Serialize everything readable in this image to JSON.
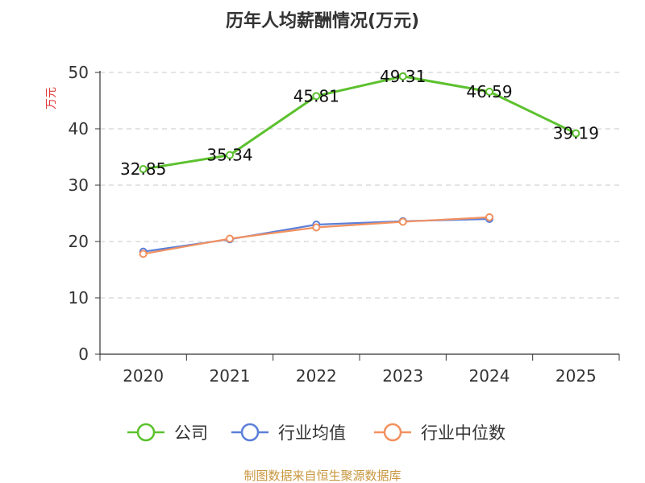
{
  "chart_data": {
    "type": "line",
    "title": "历年人均薪酬情况(万元)",
    "ylabel": "万元",
    "xlabel": "",
    "categories": [
      "2020",
      "2021",
      "2022",
      "2023",
      "2024",
      "2025"
    ],
    "ylim": [
      0,
      50
    ],
    "yticks": [
      "0",
      "10",
      "20",
      "30",
      "40",
      "50"
    ],
    "grid": true,
    "legend_position": "bottom",
    "series": [
      {
        "name": "公司",
        "values": [
          32.85,
          35.34,
          45.81,
          49.31,
          46.59,
          39.19
        ],
        "labels": [
          "32.85",
          "35.34",
          "45.81",
          "49.31",
          "46.59",
          "39.19"
        ],
        "color": "#5cc12e"
      },
      {
        "name": "行业均值",
        "values": [
          18.2,
          20.4,
          23.0,
          23.6,
          24.0,
          null
        ],
        "color": "#5b7fd8"
      },
      {
        "name": "行业中位数",
        "values": [
          17.8,
          20.5,
          22.5,
          23.5,
          24.3,
          null
        ],
        "color": "#f29160"
      }
    ]
  },
  "source": "制图数据来自恒生聚源数据库"
}
